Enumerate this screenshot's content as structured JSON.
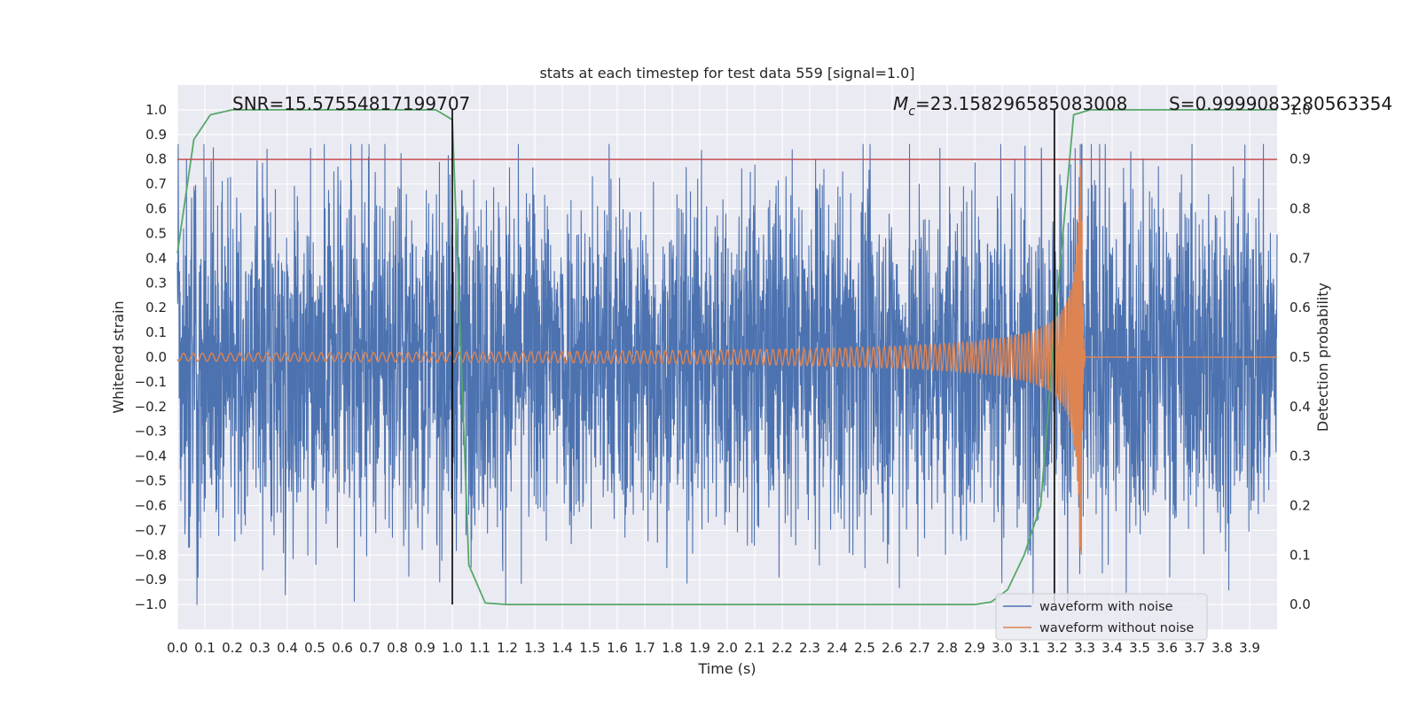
{
  "chart_data": {
    "type": "line",
    "title": "stats at each timestep for test data 559 [signal=1.0]",
    "xlabel": "Time (s)",
    "ylabel_left": "Whitened strain",
    "ylabel_right": "Detection probability",
    "xlim": [
      0.0,
      4.0
    ],
    "ylim_left": [
      -1.1,
      1.1
    ],
    "ylim_right": [
      -0.05,
      1.05
    ],
    "xticks": [
      "0.0",
      "0.1",
      "0.2",
      "0.3",
      "0.4",
      "0.5",
      "0.6",
      "0.7",
      "0.8",
      "0.9",
      "1.0",
      "1.1",
      "1.2",
      "1.3",
      "1.4",
      "1.5",
      "1.6",
      "1.7",
      "1.8",
      "1.9",
      "2.0",
      "2.1",
      "2.2",
      "2.3",
      "2.4",
      "2.5",
      "2.6",
      "2.7",
      "2.8",
      "2.9",
      "3.0",
      "3.1",
      "3.2",
      "3.3",
      "3.4",
      "3.5",
      "3.6",
      "3.7",
      "3.8",
      "3.9"
    ],
    "yticks_left": [
      "-1.0",
      "-0.9",
      "-0.8",
      "-0.7",
      "-0.6",
      "-0.5",
      "-0.4",
      "-0.3",
      "-0.2",
      "-0.1",
      "0.0",
      "0.1",
      "0.2",
      "0.3",
      "0.4",
      "0.5",
      "0.6",
      "0.7",
      "0.8",
      "0.9",
      "1.0"
    ],
    "yticks_right": [
      "0.0",
      "0.1",
      "0.2",
      "0.3",
      "0.4",
      "0.5",
      "0.6",
      "0.7",
      "0.8",
      "0.9",
      "1.0"
    ],
    "annotations": {
      "snr": "SNR=15.57554817199707",
      "mc_symbol": "M",
      "mc_sub": "c",
      "mc_value": "=23.158296585083008",
      "s": "S=0.9999083280563354"
    },
    "threshold": {
      "value": 0.9,
      "axis": "right",
      "color": "#c44e52"
    },
    "vlines": [
      1.0,
      3.19
    ],
    "series": [
      {
        "name": "waveform with noise",
        "color": "#4c72b0",
        "axis": "left",
        "kind": "noise",
        "amplitude": 0.35
      },
      {
        "name": "waveform without noise",
        "color": "#dd8452",
        "axis": "left",
        "kind": "chirp",
        "merger_time": 3.29
      },
      {
        "name": "detection probability",
        "color": "#55a868",
        "axis": "right",
        "x": [
          0.0,
          0.06,
          0.12,
          0.2,
          0.94,
          1.0,
          1.06,
          1.12,
          1.2,
          1.5,
          2.0,
          2.5,
          2.9,
          2.96,
          3.02,
          3.08,
          3.14,
          3.2,
          3.26,
          3.32,
          4.0
        ],
        "y": [
          0.71,
          0.94,
          0.99,
          1.0,
          1.0,
          0.98,
          0.08,
          0.003,
          0.0,
          0.0,
          0.0,
          0.0,
          0.0,
          0.005,
          0.03,
          0.1,
          0.2,
          0.62,
          0.99,
          1.0,
          1.0
        ]
      }
    ],
    "legend": {
      "location": "lower-right",
      "entries": [
        "waveform with noise",
        "waveform without noise"
      ]
    }
  }
}
